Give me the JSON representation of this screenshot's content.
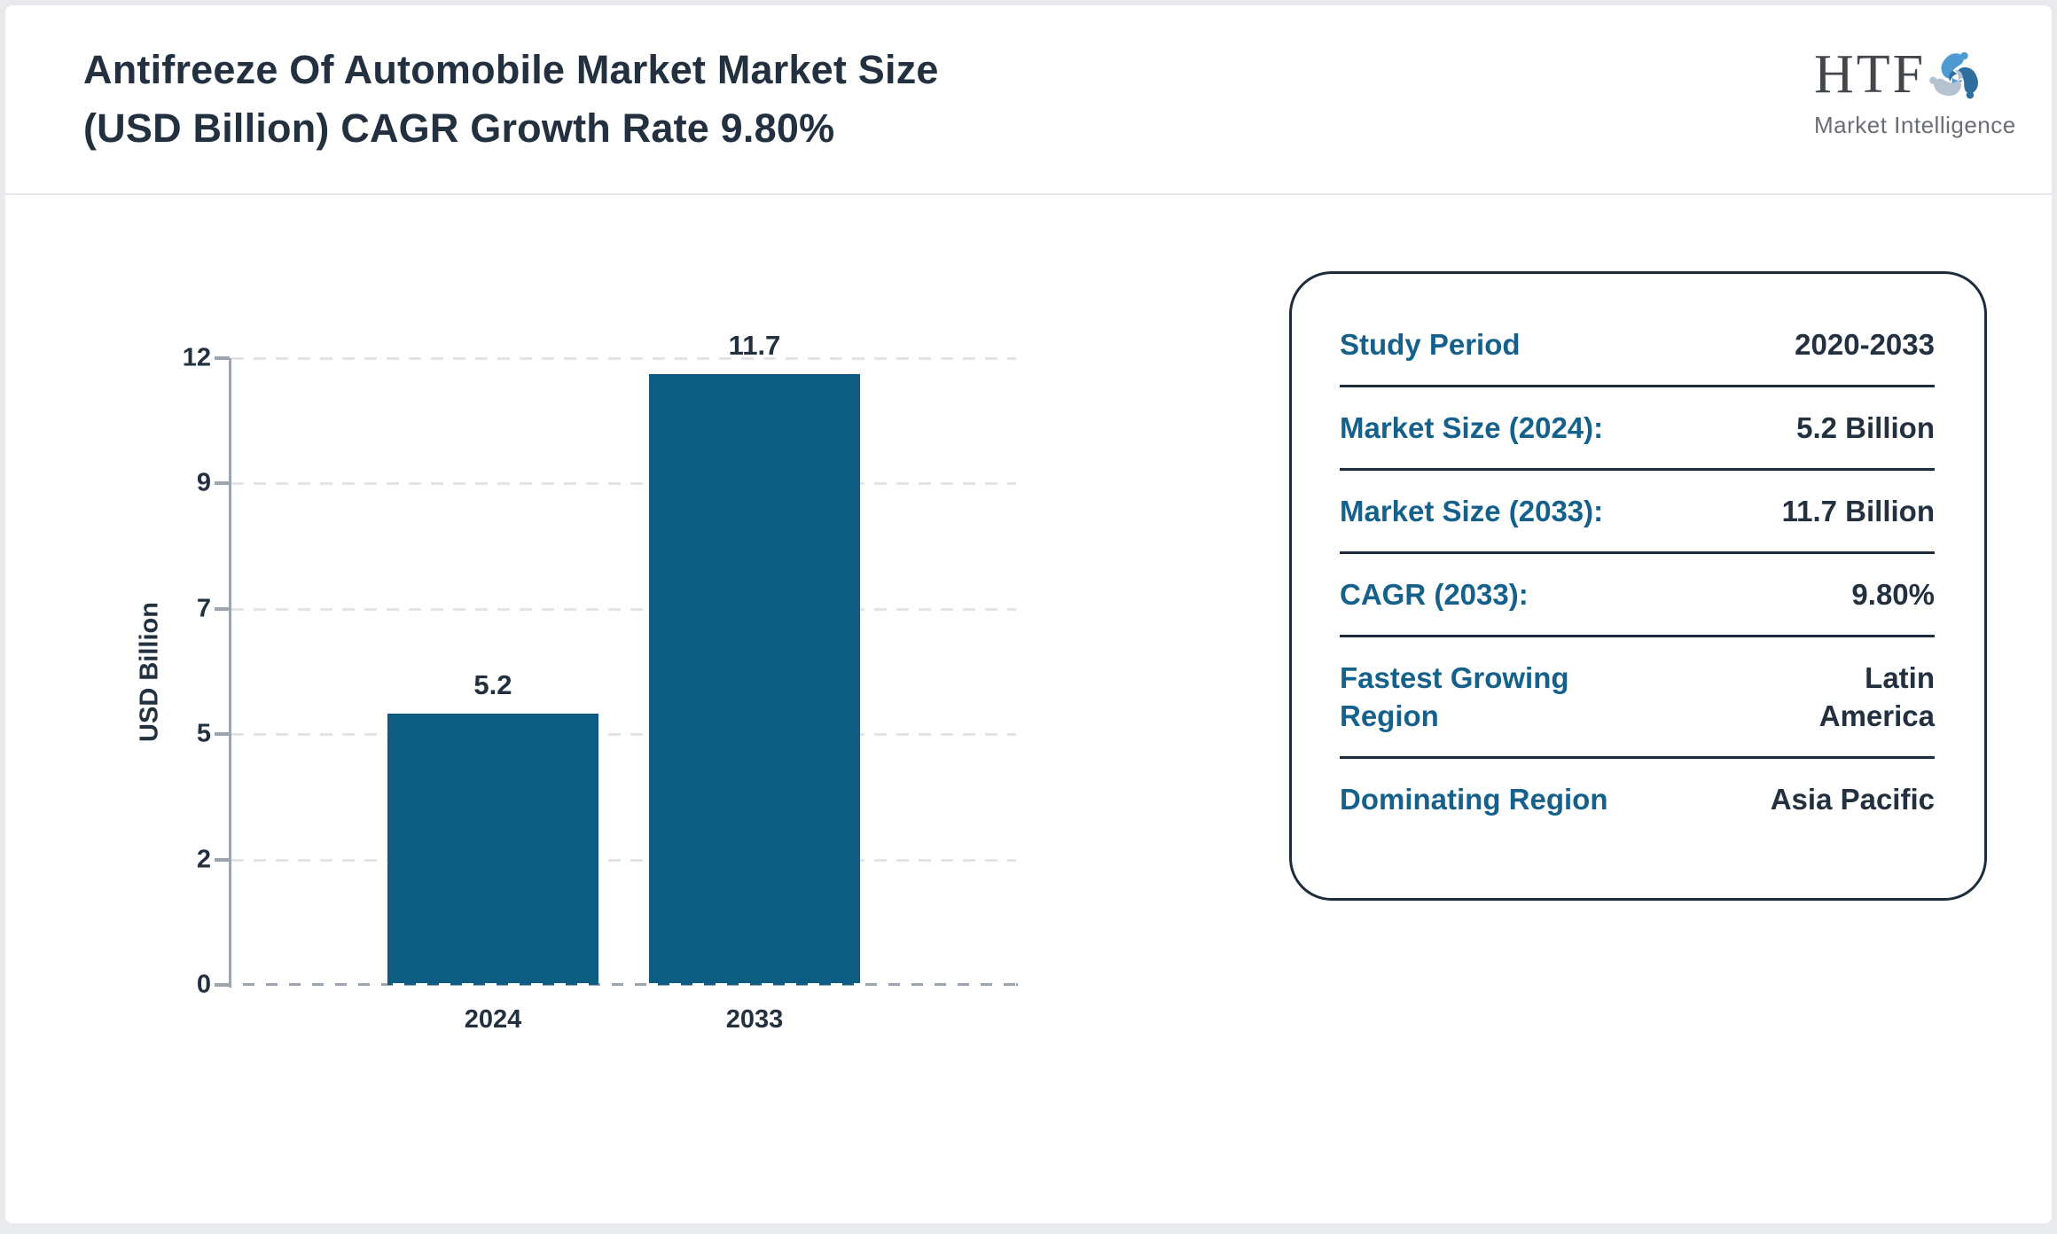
{
  "header": {
    "title": "Antifreeze Of Automobile Market Market Size (USD Billion) CAGR Growth Rate 9.80%",
    "title_lines": [
      "Antifreeze Of Automobile Market Market Size",
      "(USD Billion) CAGR Growth Rate 9.80%"
    ]
  },
  "logo": {
    "text": "HTF",
    "subtext": "Market Intelligence"
  },
  "chart_data": {
    "type": "bar",
    "title": "",
    "categories": [
      "2024",
      "2033"
    ],
    "values": [
      5.2,
      11.7
    ],
    "data_labels": [
      "5.2",
      "11.7"
    ],
    "xlabel": "",
    "ylabel": "USD Billion",
    "yticks": [
      0,
      2,
      5,
      7,
      9,
      12
    ],
    "ylim": [
      0,
      12
    ],
    "grid": true,
    "legend": false,
    "bar_color": "#0d5c82",
    "axis_color": "#9da4b0",
    "grid_color": "#e4e4e4",
    "tick_label_color": "#22303f"
  },
  "info_panel": {
    "border_color": "#1d2b3b",
    "label_color": "#15618c",
    "value_color": "#22303f",
    "rows": [
      {
        "label": "Study Period",
        "value": "2020-2033"
      },
      {
        "label": "Market Size (2024):",
        "value": "5.2 Billion"
      },
      {
        "label": "Market Size (2033):",
        "value": "11.7 Billion"
      },
      {
        "label": "CAGR (2033):",
        "value": "9.80%"
      },
      {
        "label": "Fastest Growing Region",
        "value": "Latin America"
      },
      {
        "label": "Dominating Region",
        "value": "Asia Pacific"
      }
    ]
  }
}
